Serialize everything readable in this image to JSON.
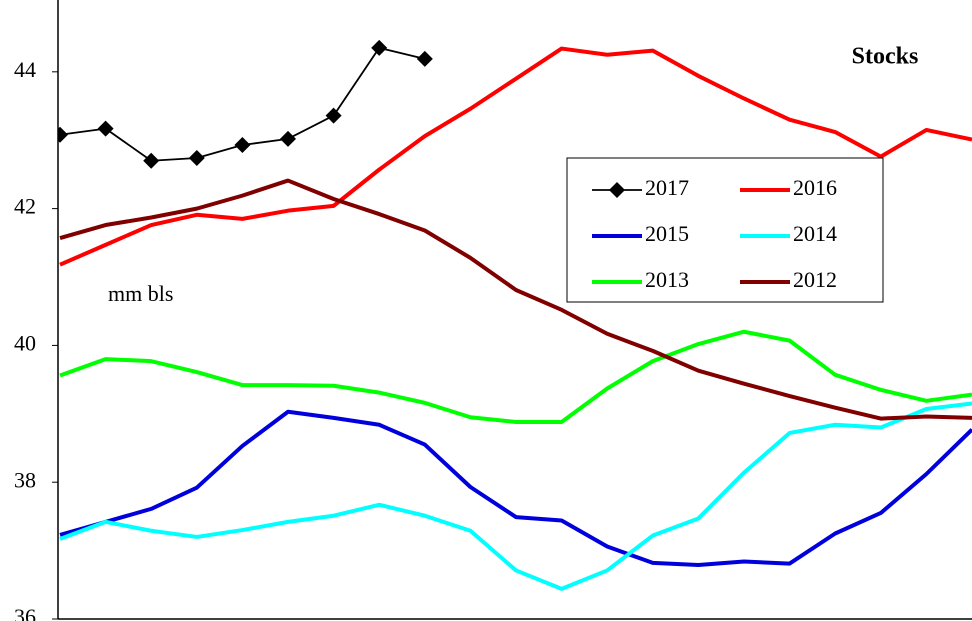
{
  "chart_data": {
    "type": "line",
    "title": "Stocks",
    "y_label": "mm  bls",
    "x": [
      0,
      1,
      2,
      3,
      4,
      5,
      6,
      7,
      8,
      9,
      10,
      11,
      12,
      13,
      14,
      15,
      16,
      17,
      18,
      19,
      20
    ],
    "xlim": [
      0,
      20
    ],
    "ylim": [
      36,
      45.05
    ],
    "yticks": [
      36,
      38,
      40,
      42,
      44
    ],
    "series": [
      {
        "name": "2017",
        "color": "#000000",
        "marker": "diamond",
        "values": [
          43.08,
          43.17,
          42.7,
          42.74,
          42.93,
          43.02,
          43.36,
          44.35,
          44.19,
          null,
          null,
          null,
          null,
          null,
          null,
          null,
          null,
          null,
          null,
          null,
          null
        ]
      },
      {
        "name": "2016",
        "color": "#ff0000",
        "values": [
          41.18,
          41.47,
          41.76,
          41.91,
          41.85,
          41.97,
          42.04,
          42.57,
          43.06,
          43.46,
          43.9,
          44.34,
          44.25,
          44.31,
          43.94,
          43.61,
          43.3,
          43.12,
          42.76,
          43.15,
          43.01
        ]
      },
      {
        "name": "2015",
        "color": "#0000dd",
        "values": [
          37.23,
          37.42,
          37.61,
          37.92,
          38.53,
          39.03,
          38.94,
          38.84,
          38.55,
          37.93,
          37.49,
          37.44,
          37.06,
          36.82,
          36.79,
          36.84,
          36.81,
          37.25,
          37.55,
          38.12,
          38.77
        ]
      },
      {
        "name": "2014",
        "color": "#00ffff",
        "values": [
          37.17,
          37.42,
          37.29,
          37.2,
          37.3,
          37.42,
          37.51,
          37.67,
          37.51,
          37.29,
          36.71,
          36.44,
          36.71,
          37.22,
          37.47,
          38.14,
          38.72,
          38.84,
          38.8,
          39.07,
          39.15
        ]
      },
      {
        "name": "2013",
        "color": "#00ff00",
        "values": [
          39.56,
          39.8,
          39.77,
          39.61,
          39.42,
          39.42,
          39.41,
          39.31,
          39.16,
          38.95,
          38.88,
          38.88,
          39.37,
          39.77,
          40.02,
          40.2,
          40.07,
          39.57,
          39.35,
          39.19,
          39.28
        ]
      },
      {
        "name": "2012",
        "color": "#800000",
        "values": [
          41.57,
          41.76,
          41.87,
          42.0,
          42.19,
          42.41,
          42.14,
          41.92,
          41.68,
          41.28,
          40.81,
          40.52,
          40.17,
          39.92,
          39.63,
          39.44,
          39.26,
          39.09,
          38.93,
          38.96,
          38.94
        ]
      }
    ]
  }
}
